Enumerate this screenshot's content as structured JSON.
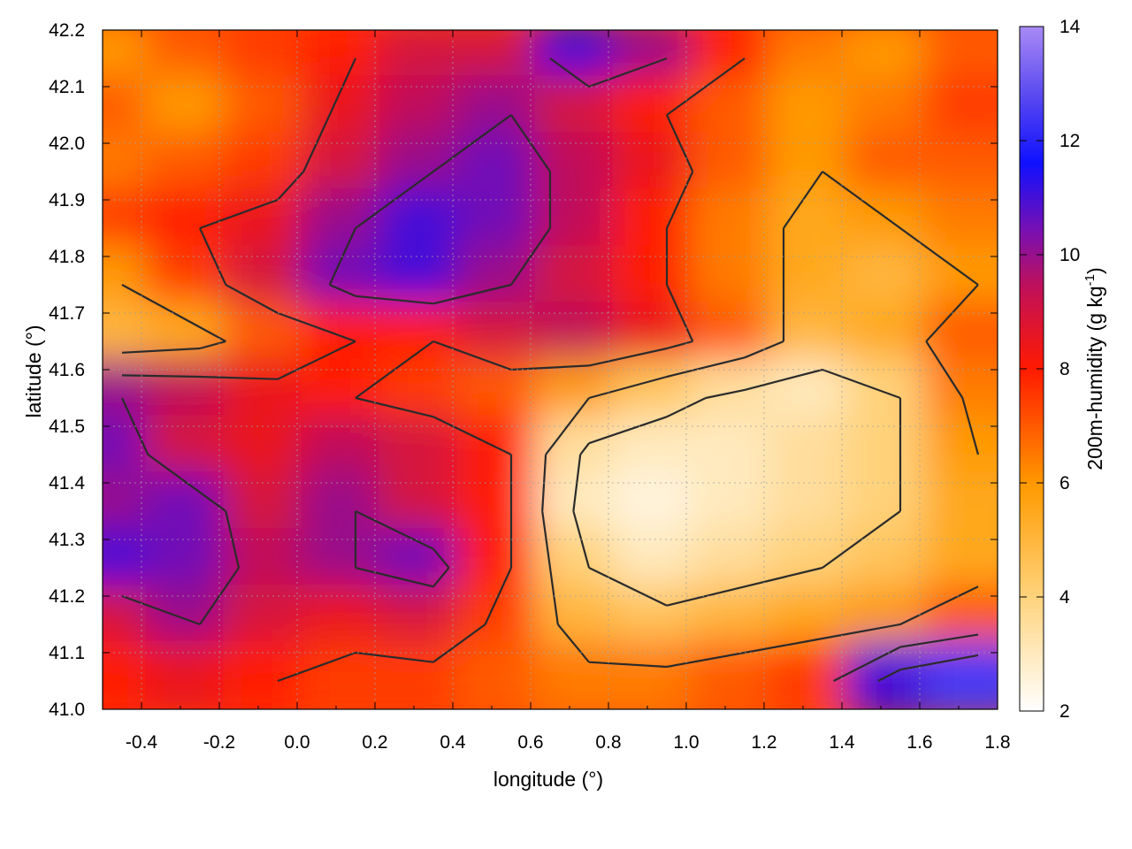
{
  "chart_data": {
    "type": "heatmap",
    "xlabel": "longitude (°)",
    "ylabel": "latitude (°)",
    "colorbar_label": "200m-humidity (g kg-1)",
    "colorbar_label_base": "200m-humidity (g kg",
    "colorbar_label_sup": "-1",
    "colorbar_label_end": ")",
    "xlim": [
      -0.5,
      1.8
    ],
    "ylim": [
      41.0,
      42.2
    ],
    "clim": [
      2,
      14
    ],
    "x_ticks": [
      "-0.4",
      "-0.2",
      "0.0",
      "0.2",
      "0.4",
      "0.6",
      "0.8",
      "1.0",
      "1.2",
      "1.4",
      "1.6",
      "1.8"
    ],
    "x_tick_values": [
      -0.4,
      -0.2,
      0.0,
      0.2,
      0.4,
      0.6,
      0.8,
      1.0,
      1.2,
      1.4,
      1.6,
      1.8
    ],
    "y_ticks": [
      "41.0",
      "41.1",
      "41.2",
      "41.3",
      "41.4",
      "41.5",
      "41.6",
      "41.7",
      "41.8",
      "41.9",
      "42.0",
      "42.1",
      "42.2"
    ],
    "y_tick_values": [
      41.0,
      41.1,
      41.2,
      41.3,
      41.4,
      41.5,
      41.6,
      41.7,
      41.8,
      41.9,
      42.0,
      42.1,
      42.2
    ],
    "colorbar_ticks": [
      "2",
      "4",
      "6",
      "8",
      "10",
      "12",
      "14"
    ],
    "colorbar_tick_values": [
      2,
      4,
      6,
      8,
      10,
      12,
      14
    ],
    "grid": true,
    "colormap": [
      "#ffffff",
      "#ffa500",
      "#ff0000",
      "#8b008b",
      "#0000ff",
      "#9370db"
    ],
    "contours": true,
    "humidity_grid": {
      "lon": [
        -0.45,
        -0.25,
        -0.05,
        0.15,
        0.35,
        0.55,
        0.75,
        0.95,
        1.15,
        1.35,
        1.55,
        1.75
      ],
      "lat": [
        42.15,
        42.05,
        41.95,
        41.85,
        41.75,
        41.65,
        41.55,
        41.45,
        41.35,
        41.25,
        41.15,
        41.05
      ],
      "values": [
        [
          6,
          7,
          7.5,
          8,
          9,
          9,
          11,
          10,
          8,
          6.5,
          6,
          7
        ],
        [
          7,
          6,
          7,
          8.5,
          9.5,
          10,
          9,
          8,
          7,
          6,
          6.5,
          7.5
        ],
        [
          6.5,
          7,
          7.5,
          9,
          10,
          10.5,
          9.5,
          8.5,
          7,
          6,
          7,
          7
        ],
        [
          7.5,
          8,
          8.5,
          10,
          11,
          10.5,
          9.5,
          8,
          6.5,
          5.5,
          6,
          6.5
        ],
        [
          6,
          7.5,
          9,
          10.5,
          11,
          10,
          9,
          8,
          6.5,
          5.5,
          5,
          6
        ],
        [
          5,
          5.5,
          7,
          8,
          8,
          9,
          9.5,
          8.5,
          7,
          5,
          5.5,
          7
        ],
        [
          10,
          9.5,
          8.5,
          8,
          7.5,
          7,
          6,
          4.5,
          3.5,
          3,
          4,
          6.5
        ],
        [
          10.5,
          9,
          8.5,
          9.5,
          9,
          8,
          3.5,
          3,
          3,
          3.5,
          4,
          6
        ],
        [
          10,
          10.5,
          9,
          10,
          9,
          8,
          3,
          2.5,
          3,
          3.5,
          4,
          5.5
        ],
        [
          11,
          10.5,
          9.5,
          10,
          10.5,
          8,
          4,
          3,
          3.5,
          4,
          4.5,
          5.5
        ],
        [
          9,
          10,
          9,
          8.5,
          9,
          7.5,
          5,
          4.5,
          5,
          5.5,
          6,
          7
        ],
        [
          8,
          8.5,
          8,
          7.5,
          7.5,
          7,
          6.5,
          6.5,
          7,
          7.5,
          11,
          12.5
        ]
      ]
    }
  }
}
